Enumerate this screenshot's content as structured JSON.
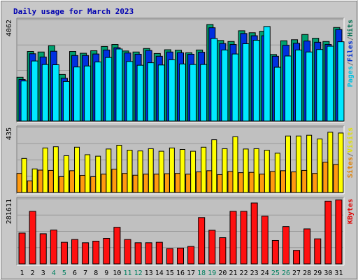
{
  "chart_data": {
    "type": "bar",
    "title": "Daily usage for March 2023",
    "categories": [
      "1",
      "2",
      "3",
      "4",
      "5",
      "6",
      "7",
      "8",
      "9",
      "10",
      "11",
      "12",
      "13",
      "14",
      "15",
      "16",
      "17",
      "18",
      "19",
      "20",
      "21",
      "22",
      "23",
      "24",
      "25",
      "26",
      "27",
      "28",
      "29",
      "30",
      "31"
    ],
    "weekend_days": [
      "4",
      "5",
      "11",
      "12",
      "18",
      "19",
      "25",
      "26"
    ],
    "panels": [
      {
        "id": "top",
        "ymax_label": "4062",
        "ymax": 4062,
        "legend": [
          "Pages",
          "/",
          "Files",
          "/",
          "Hits"
        ],
        "legend_colors": [
          "#00c0e0",
          "#707070",
          "#0030d0",
          "#707070",
          "#007050"
        ],
        "series": [
          {
            "name": "Hits",
            "color": "#00a070",
            "values": [
              1770,
              2800,
              2780,
              3030,
              1880,
              2800,
              2730,
              2830,
              3000,
              3080,
              2820,
              2780,
              2920,
              2720,
              2870,
              2850,
              2750,
              2860,
              3880,
              3240,
              3200,
              3630,
              3550,
              3610,
              2680,
              3230,
              3270,
              3480,
              3330,
              3200,
              3760
            ]
          },
          {
            "name": "Files",
            "color": "#0030e0",
            "values": [
              1680,
              2710,
              2580,
              2810,
              1730,
              2640,
              2640,
              2700,
              2860,
              2950,
              2740,
              2690,
              2840,
              2610,
              2780,
              2750,
              2690,
              2770,
              3750,
              3120,
              3080,
              3520,
              3430,
              3430,
              2610,
              3050,
              3130,
              3220,
              3170,
              3080,
              3680
            ]
          },
          {
            "name": "Pages",
            "color": "#00e8ff",
            "values": [
              1620,
              2420,
              2280,
              2270,
              1600,
              2180,
              2220,
              2380,
              2560,
              2900,
              2400,
              2250,
              2350,
              2260,
              2470,
              2300,
              2280,
              2280,
              3320,
              2860,
              2700,
              3110,
              3250,
              3800,
              2170,
              2620,
              2860,
              2780,
              2880,
              3010,
              3190
            ]
          }
        ]
      },
      {
        "id": "mid",
        "ymax_label": "435",
        "ymax": 435,
        "legend": [
          "Sites",
          "/",
          "Visits"
        ],
        "legend_colors": [
          "#e08000",
          "#707070",
          "#e0e000"
        ],
        "series": [
          {
            "name": "Visits",
            "color": "#ffff00",
            "values": [
              230,
              160,
              300,
              308,
              248,
              305,
              255,
              245,
              293,
              318,
              285,
              280,
              295,
              278,
              300,
              290,
              278,
              305,
              355,
              295,
              375,
              293,
              295,
              285,
              265,
              380,
              380,
              385,
              360,
              405,
              400
            ]
          },
          {
            "name": "Sites",
            "color": "#ff9a10",
            "values": [
              130,
              80,
              152,
              150,
              108,
              148,
              117,
              108,
              125,
              158,
              130,
              118,
              125,
              125,
              128,
              130,
              125,
              140,
              148,
              122,
              143,
              135,
              137,
              125,
              143,
              148,
              140,
              150,
              130,
              205,
              190
            ]
          }
        ]
      },
      {
        "id": "bot",
        "ymax_label": "281611",
        "ymax": 281611,
        "legend": [
          "KBytes"
        ],
        "legend_colors": [
          "#e00000"
        ],
        "series": [
          {
            "name": "KBytes",
            "color": "#ff1010",
            "values": [
              135000,
              229000,
              132000,
              148000,
              95000,
              107000,
              93000,
              100000,
              112000,
              160000,
              107000,
              93000,
              93000,
              95000,
              68000,
              70000,
              77000,
              202000,
              147000,
              115000,
              229000,
              229000,
              265000,
              208000,
              103000,
              163000,
              60000,
              153000,
              110000,
              273000,
              278000
            ]
          }
        ]
      }
    ]
  }
}
